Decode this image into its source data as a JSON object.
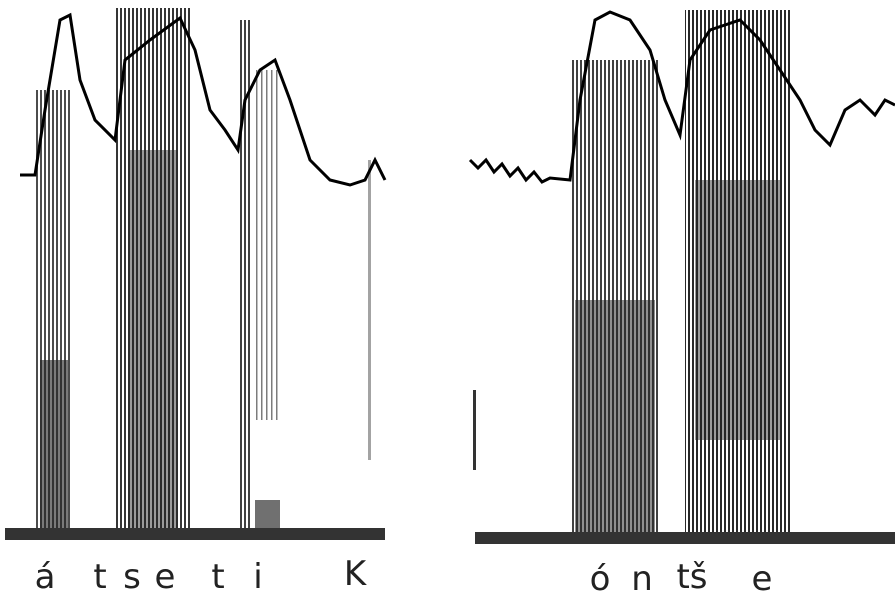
{
  "panels": [
    {
      "segments": [
        "á",
        "t",
        "s",
        "e",
        "t",
        "i",
        "K"
      ]
    },
    {
      "segments": [
        "ó",
        "n",
        "tš",
        "e"
      ]
    }
  ]
}
